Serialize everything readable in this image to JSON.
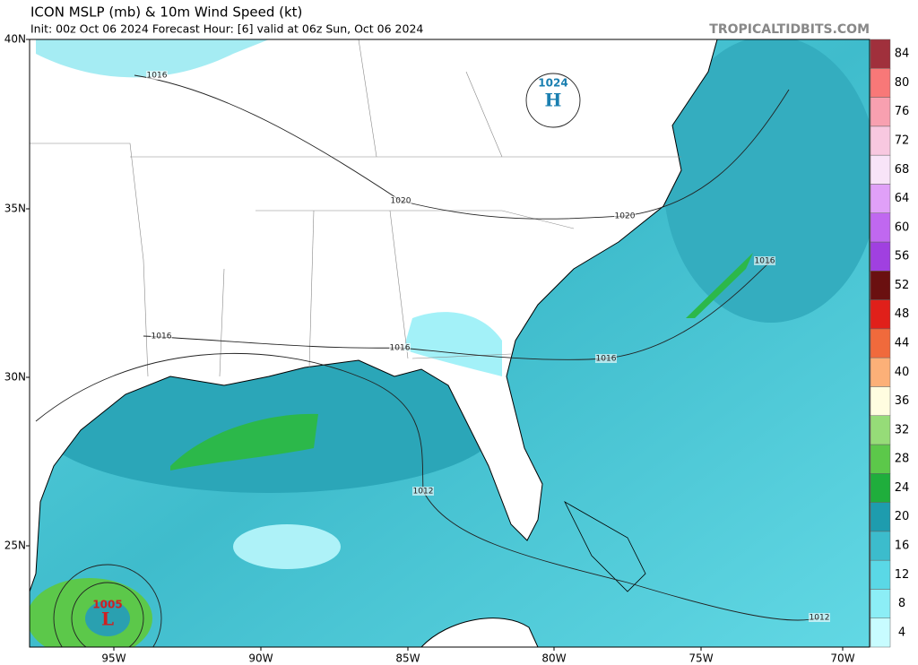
{
  "header": {
    "title": "ICON MSLP (mb) & 10m Wind Speed (kt)",
    "subtitle": "Init: 00z Oct 06 2024   Forecast Hour: [6]   valid at 06z Sun, Oct 06 2024",
    "site": "TROPICALTIDBITS.COM"
  },
  "latitude_labels": [
    "40N",
    "35N",
    "30N",
    "25N"
  ],
  "longitude_labels": [
    "95W",
    "90W",
    "85W",
    "80W",
    "75W",
    "70W"
  ],
  "isobar_labels": [
    1016,
    1020,
    1020,
    1016,
    1016,
    1016,
    1016,
    1012,
    1012
  ],
  "high": {
    "pressure": 1024,
    "letter": "H"
  },
  "low": {
    "pressure": 1005,
    "letter": "L"
  },
  "colorbar": {
    "labels": [
      4,
      8,
      12,
      16,
      20,
      24,
      28,
      32,
      36,
      40,
      44,
      48,
      52,
      56,
      60,
      64,
      68,
      72,
      76,
      80,
      84
    ],
    "colors": [
      "#c8fcff",
      "#8ceef6",
      "#5ad8e6",
      "#3cbccc",
      "#1e9cae",
      "#1fae3c",
      "#5cc84a",
      "#96dc78",
      "#fffde0",
      "#fcb078",
      "#f06a3c",
      "#e0201a",
      "#6a1010",
      "#a040e0",
      "#c068f0",
      "#e0a0f8",
      "#f8e4f8",
      "#f8c8e0",
      "#f8a0b0",
      "#f87878",
      "#a0303c"
    ]
  }
}
